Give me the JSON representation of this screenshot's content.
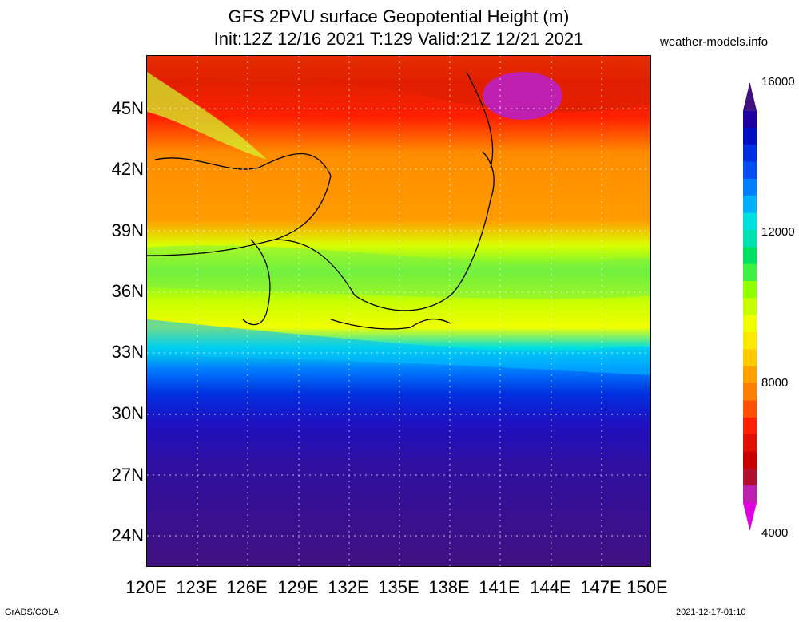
{
  "title": {
    "line1": "GFS 2PVU surface Geopotential Height (m)",
    "line2": "Init:12Z 12/16 2021 T:129 Valid:21Z 12/21 2021"
  },
  "credit": "weather-models.info",
  "lat_labels": [
    "45N",
    "42N",
    "39N",
    "36N",
    "33N",
    "30N",
    "27N",
    "24N"
  ],
  "lon_labels": [
    "120E",
    "123E",
    "126E",
    "129E",
    "132E",
    "135E",
    "138E",
    "141E",
    "144E",
    "147E",
    "150E"
  ],
  "colorbar": {
    "labels": [
      "16000",
      "12000",
      "8000",
      "4000"
    ],
    "colors": [
      "#e000e0",
      "#c020b0",
      "#b01030",
      "#c80000",
      "#e01000",
      "#ff2000",
      "#ff5000",
      "#ff8000",
      "#ffa000",
      "#ffc800",
      "#ffe800",
      "#f0ff00",
      "#c8ff00",
      "#90ff00",
      "#40f040",
      "#00e060",
      "#00e0b0",
      "#00e0e0",
      "#00b0ff",
      "#0080ff",
      "#0050f0",
      "#0030e0",
      "#0010c0",
      "#2000a0",
      "#401080"
    ]
  },
  "footer": {
    "left": "GrADS/COLA",
    "right": "2021-12-17-01:10"
  }
}
